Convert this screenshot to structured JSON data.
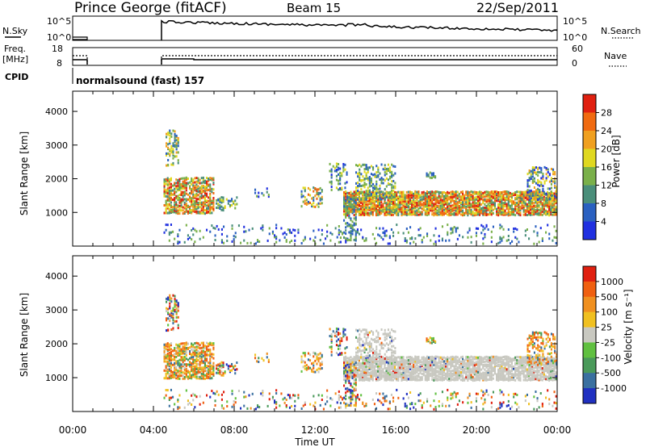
{
  "header": {
    "station": "Prince George (fitACF)",
    "beam": "Beam 15",
    "date": "22/Sep/2011"
  },
  "panels": {
    "sky": {
      "left_label": "N.Sky",
      "left_ticks": [
        "10^5",
        "10^0"
      ],
      "right_label": "N.Search",
      "right_ticks": [
        "10^5",
        "10^0"
      ]
    },
    "freq": {
      "left_label_1": "Freq.",
      "left_label_2": "[MHz]",
      "left_ticks": [
        "18",
        "8"
      ],
      "right_label": "Nave",
      "right_ticks": [
        "60",
        "0"
      ]
    },
    "cpid": {
      "label": "CPID",
      "program": "normalsound (fast) 157"
    }
  },
  "chart_data": [
    {
      "type": "heatmap",
      "panel": "power",
      "ylabel": "Slant Range [km]",
      "xlabel": "Time UT",
      "xlim": [
        "00:00",
        "00:00"
      ],
      "ylim": [
        0,
        4600
      ],
      "yticks": [
        "1000",
        "2000",
        "3000",
        "4000"
      ],
      "xticks": [
        "00:00",
        "04:00",
        "08:00",
        "12:00",
        "16:00",
        "20:00",
        "00:00"
      ],
      "colorbar": {
        "label": "Power [dB]",
        "ticks": [
          "4",
          "8",
          "12",
          "16",
          "20",
          "24",
          "28"
        ],
        "colors": [
          "#2030e0",
          "#2a60c0",
          "#4a8e7a",
          "#7ab04a",
          "#e0d820",
          "#f0a020",
          "#f06a10",
          "#e02010"
        ]
      }
    },
    {
      "type": "heatmap",
      "panel": "velocity",
      "ylabel": "Slant Range [km]",
      "xlabel": "Time UT",
      "ylim": [
        0,
        4600
      ],
      "yticks": [
        "1000",
        "2000",
        "3000",
        "4000"
      ],
      "xticks": [
        "00:00",
        "04:00",
        "08:00",
        "12:00",
        "16:00",
        "20:00",
        "00:00"
      ],
      "colorbar": {
        "label": "Velocity [m s⁻¹]",
        "ticks": [
          "1000",
          "500",
          "100",
          "25",
          "-25",
          "-100",
          "-500",
          "-1000"
        ],
        "colors": [
          "#2030c0",
          "#3a70a0",
          "#4a9a5a",
          "#60c040",
          "#c8c8c0",
          "#f0c020",
          "#f09020",
          "#f06010",
          "#e02010"
        ]
      }
    }
  ]
}
